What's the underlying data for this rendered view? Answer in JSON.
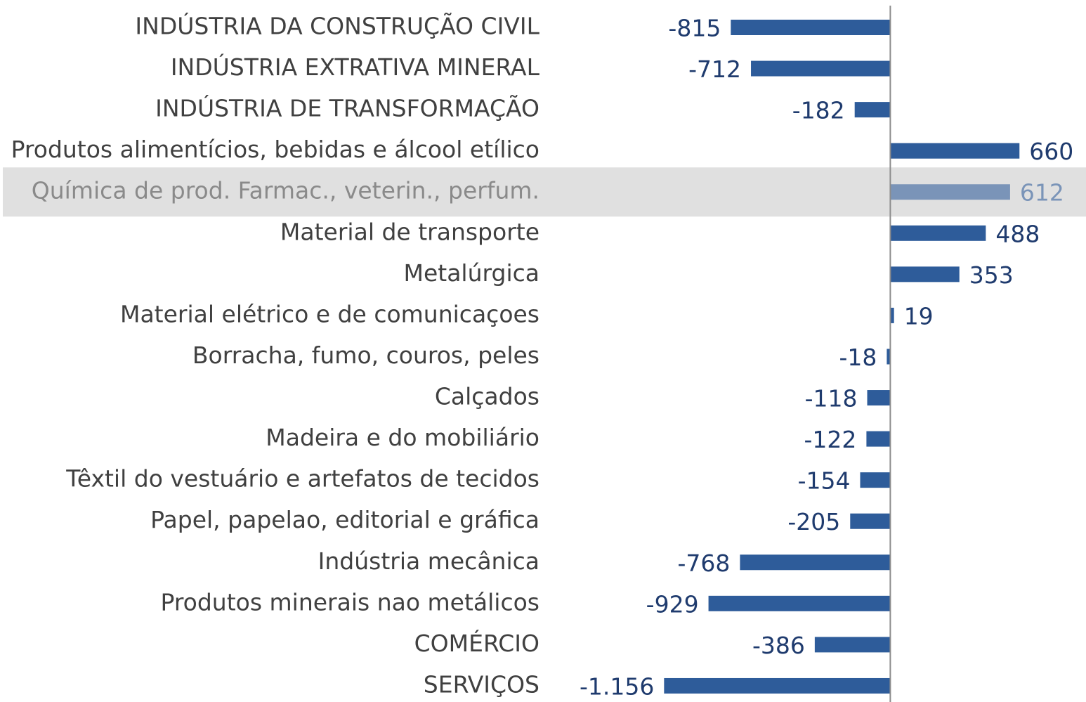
{
  "chart_data": {
    "type": "barh",
    "categories": [
      "INDÚSTRIA DA CONSTRUÇÃO CIVIL",
      "INDÚSTRIA EXTRATIVA MINERAL",
      "INDÚSTRIA DE TRANSFORMAÇÃO",
      "Produtos alimentícios, bebidas e álcool etílico",
      "Química de prod. Farmac., veterin., perfum.",
      "Material de transporte",
      "Metalúrgica",
      "Material elétrico e de comunicaçoes",
      "Borracha, fumo, couros, peles",
      "Calçados",
      "Madeira e do mobiliário",
      "Têxtil do vestuário e artefatos de tecidos",
      "Papel, papelao, editorial e gráfica",
      "Indústria mecânica",
      "Produtos minerais nao metálicos",
      "COMÉRCIO",
      "SERVIÇOS"
    ],
    "values": [
      -815,
      -712,
      -182,
      660,
      612,
      488,
      353,
      19,
      -18,
      -118,
      -122,
      -154,
      -205,
      -768,
      -929,
      -386,
      -1156
    ],
    "value_labels": [
      "-815",
      "-712",
      "-182",
      "660",
      "612",
      "488",
      "353",
      "19",
      "-18",
      "-118",
      "-122",
      "-154",
      "-205",
      "-768",
      "-929",
      "-386",
      "-1.156"
    ],
    "color": "#2e5c9a",
    "label_color": "#1f3b6e",
    "highlighted": 4,
    "highlight_color": "#7a94b8",
    "xlim": [
      -1570,
      1000
    ]
  }
}
